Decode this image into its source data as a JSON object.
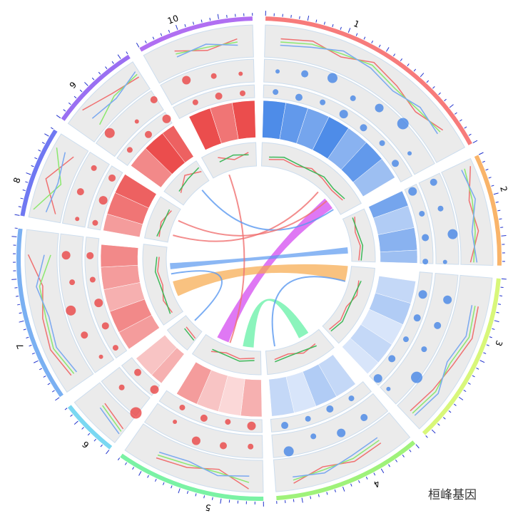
{
  "chart_data": {
    "type": "circos",
    "chromosomes": [
      {
        "name": "1",
        "length": 60,
        "color": "#f77b7b",
        "point_color": "#3b7fe6"
      },
      {
        "name": "2",
        "length": 27,
        "color": "#f9b46a",
        "point_color": "#3b7fe6"
      },
      {
        "name": "3",
        "length": 42,
        "color": "#d8f77a",
        "point_color": "#3b7fe6"
      },
      {
        "name": "4",
        "length": 36,
        "color": "#9ff27a",
        "point_color": "#3b7fe6"
      },
      {
        "name": "5",
        "length": 36,
        "color": "#7af2a4",
        "point_color": "#e93a3a"
      },
      {
        "name": "6",
        "length": 14,
        "color": "#7ad8f2",
        "point_color": "#e93a3a"
      },
      {
        "name": "7",
        "length": 42,
        "color": "#7ab0f2",
        "point_color": "#e93a3a"
      },
      {
        "name": "8",
        "length": 22,
        "color": "#6f78f2",
        "point_color": "#e93a3a"
      },
      {
        "name": "9",
        "length": 22,
        "color": "#9a6ff2",
        "point_color": "#e93a3a"
      },
      {
        "name": "10",
        "length": 28,
        "color": "#b06ff2",
        "point_color": "#e93a3a"
      }
    ],
    "tracks": [
      {
        "type": "line",
        "ylim": [
          0,
          1
        ],
        "series": [
          {
            "color": "#f07070",
            "values": [
              0.6,
              0.7,
              0.5,
              0.8,
              0.6,
              0.4,
              0.7,
              0.9,
              0.5,
              0.6,
              0.3,
              0.7,
              0.8,
              0.6,
              0.5,
              0.4,
              0.6,
              0.7,
              0.5,
              0.8,
              0.9,
              0.4,
              0.6,
              0.7,
              0.5,
              0.3,
              0.6,
              0.8,
              0.7,
              0.5,
              0.9,
              0.2,
              0.8,
              0.3,
              0.9,
              0.6,
              0.5,
              0.7,
              0.4,
              0.6
            ]
          },
          {
            "color": "#8be86f",
            "values": [
              0.5,
              0.6,
              0.6,
              0.7,
              0.5,
              0.5,
              0.6,
              0.7,
              0.6,
              0.5,
              0.4,
              0.6,
              0.7,
              0.5,
              0.6,
              0.5,
              0.5,
              0.6,
              0.6,
              0.7,
              0.7,
              0.5,
              0.5,
              0.6,
              0.6,
              0.4,
              0.5,
              0.7,
              0.6,
              0.6,
              0.2,
              0.9,
              0.3,
              0.9,
              0.2,
              0.5,
              0.6,
              0.6,
              0.5,
              0.5
            ]
          },
          {
            "color": "#7aa8f0",
            "values": [
              0.4,
              0.5,
              0.7,
              0.6,
              0.4,
              0.6,
              0.5,
              0.6,
              0.7,
              0.4,
              0.5,
              0.5,
              0.6,
              0.4,
              0.7,
              0.6,
              0.4,
              0.5,
              0.7,
              0.6,
              0.5,
              0.6,
              0.4,
              0.5,
              0.7,
              0.5,
              0.4,
              0.6,
              0.5,
              0.7,
              0.4,
              0.5,
              0.4,
              0.6,
              0.5,
              0.4,
              0.7,
              0.5,
              0.6,
              0.4
            ]
          }
        ]
      },
      {
        "type": "bubble",
        "ylim": [
          0,
          1
        ],
        "values": [
          0.5,
          0.6,
          0.8,
          0.4,
          0.7,
          0.9,
          0.3,
          0.6,
          0.5,
          0.8,
          0.4,
          0.7,
          0.6,
          0.5,
          0.9,
          0.3,
          0.6,
          0.7,
          0.4,
          0.8,
          0.5,
          0.6,
          0.7,
          0.3,
          0.9,
          0.5,
          0.4,
          0.6,
          0.8,
          0.5,
          0.7,
          0.4,
          0.6,
          0.5,
          0.8,
          0.3,
          0.6,
          0.7,
          0.5,
          0.4
        ],
        "sizes": [
          3,
          5,
          7,
          4,
          6,
          8,
          3,
          5,
          4,
          7,
          3,
          6,
          5,
          4,
          8,
          3,
          5,
          6,
          4,
          7,
          4,
          5,
          6,
          3,
          8,
          4,
          3,
          5,
          7,
          4,
          6,
          3,
          5,
          4,
          7,
          3,
          5,
          6,
          4,
          3
        ]
      },
      {
        "type": "heatmap",
        "values": [
          0.9,
          0.8,
          0.7,
          0.9,
          0.6,
          0.8,
          0.5,
          0.7,
          0.4,
          0.6,
          0.5,
          0.3,
          0.4,
          0.2,
          0.3,
          0.2,
          0.3,
          0.4,
          0.2,
          0.3,
          0.4,
          0.2,
          0.3,
          0.5,
          0.4,
          0.3,
          0.5,
          0.6,
          0.4,
          0.5,
          0.6,
          0.5,
          0.7,
          0.8,
          0.6,
          0.9,
          0.8,
          0.9,
          0.7,
          0.9
        ]
      },
      {
        "type": "bubble",
        "ylim": [
          0,
          1
        ],
        "values": [
          0.5,
          0.4,
          0.6,
          0.5,
          0.5,
          0.6,
          0.4,
          0.5,
          0.6,
          0.5,
          0.4,
          0.5,
          0.6,
          0.5,
          0.4,
          0.6,
          0.5,
          0.4,
          0.5,
          0.6,
          0.5,
          0.4,
          0.6,
          0.5,
          0.5,
          0.4,
          0.6,
          0.5,
          0.4,
          0.5,
          0.6,
          0.5,
          0.4,
          0.5,
          0.6,
          0.4,
          0.5,
          0.6,
          0.5,
          0.4
        ],
        "sizes": [
          4,
          5,
          4,
          6,
          5,
          4,
          5,
          6,
          4,
          5,
          4,
          6,
          5,
          4,
          5,
          6,
          4,
          5,
          4,
          5,
          6,
          4,
          5,
          4,
          6,
          5,
          4,
          5,
          6,
          4,
          5,
          4,
          6,
          5,
          4,
          5,
          6,
          4,
          5,
          4
        ]
      },
      {
        "type": "line",
        "ylim": [
          0,
          1
        ],
        "series": [
          {
            "color": "#f07070",
            "values": [
              0.3,
              0.4,
              0.3,
              0.5,
              0.4,
              0.3,
              0.4,
              0.5,
              0.3,
              0.4,
              0.3,
              0.4,
              0.5,
              0.3,
              0.4,
              0.3,
              0.4,
              0.5,
              0.3,
              0.4,
              0.3,
              0.4,
              0.3,
              0.5,
              0.4,
              0.3,
              0.4,
              0.5,
              0.3,
              0.4,
              0.3,
              0.4,
              0.5,
              0.3,
              0.4,
              0.8,
              0.5,
              0.7,
              0.4,
              0.6
            ]
          },
          {
            "color": "#3fb85a",
            "values": [
              0.4,
              0.5,
              0.4,
              0.4,
              0.5,
              0.4,
              0.5,
              0.4,
              0.4,
              0.5,
              0.4,
              0.5,
              0.4,
              0.4,
              0.5,
              0.4,
              0.5,
              0.4,
              0.4,
              0.5,
              0.4,
              0.5,
              0.4,
              0.4,
              0.5,
              0.4,
              0.5,
              0.4,
              0.4,
              0.5,
              0.4,
              0.5,
              0.4,
              0.4,
              0.5,
              0.6,
              0.7,
              0.5,
              0.6,
              0.5
            ]
          }
        ]
      }
    ],
    "links": [
      {
        "from": [
          0,
          50
        ],
        "to": [
          4,
          25
        ],
        "color": "#d23ff0",
        "width": 8
      },
      {
        "from": [
          1,
          20
        ],
        "to": [
          6,
          30
        ],
        "color": "#5a98f0",
        "width": 4
      },
      {
        "from": [
          2,
          5
        ],
        "to": [
          6,
          15
        ],
        "color": "#f7a84a",
        "width": 10
      },
      {
        "from": [
          3,
          10
        ],
        "to": [
          4,
          8
        ],
        "color": "#5af0a0",
        "width": 7
      },
      {
        "from": [
          4,
          20
        ],
        "to": [
          9,
          10
        ],
        "color": "#f07070",
        "width": 0
      },
      {
        "from": [
          0,
          40
        ],
        "to": [
          7,
          5
        ],
        "color": "#f07070",
        "width": 0
      },
      {
        "from": [
          2,
          10
        ],
        "to": [
          3,
          30
        ],
        "color": "#5a98f0",
        "width": 0
      },
      {
        "from": [
          6,
          25
        ],
        "to": [
          5,
          8
        ],
        "color": "#5a98f0",
        "width": 0
      },
      {
        "from": [
          0,
          55
        ],
        "to": [
          8,
          15
        ],
        "color": "#5a98f0",
        "width": 0
      },
      {
        "from": [
          7,
          15
        ],
        "to": [
          0,
          48
        ],
        "color": "#f07070",
        "width": 0
      }
    ]
  },
  "watermark": "桓峰基因"
}
